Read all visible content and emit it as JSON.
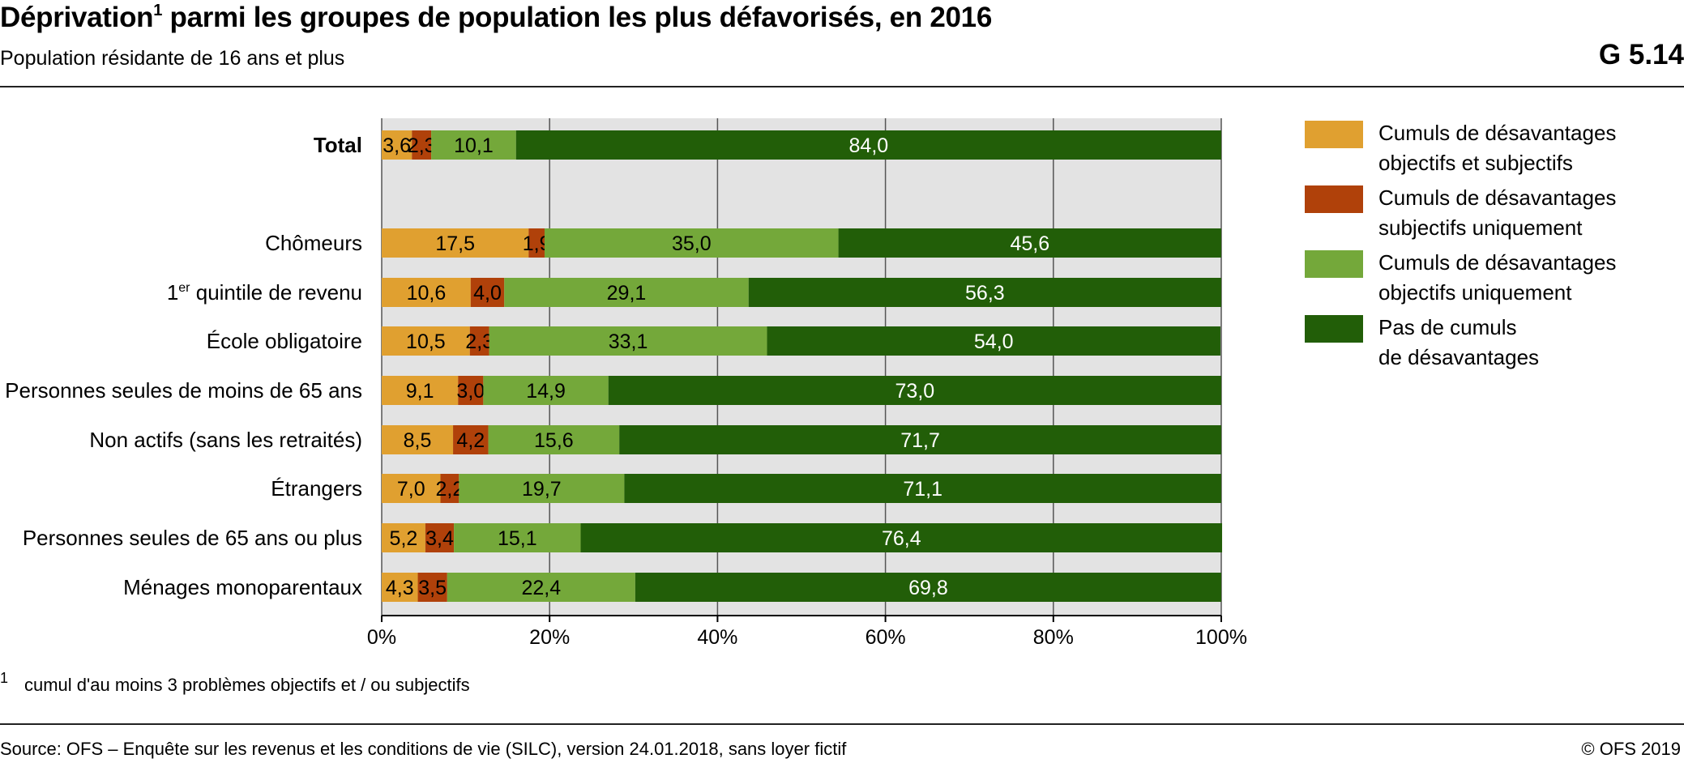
{
  "header": {
    "title": "Déprivation",
    "title_sup": "1",
    "title_rest": " parmi les groupes de population les plus défavorisés, en 2016",
    "subtitle": "Population résidante de 16 ans et plus",
    "code": "G 5.14"
  },
  "chart_data": {
    "type": "bar",
    "orientation": "horizontal",
    "stacked": true,
    "percent_stacked": true,
    "categories": [
      "Total",
      "Chômeurs",
      "1er quintile de revenu",
      "École obligatoire",
      "Personnes seules de moins de 65 ans",
      "Non actifs (sans les retraités)",
      "Étrangers",
      "Personnes seules de 65 ans ou plus",
      "Ménages monoparentaux"
    ],
    "category_gap_after_first": true,
    "series": [
      {
        "name": "Cumuls de désavantages objectifs et subjectifs",
        "color": "#E0A030",
        "label_color": "#000000",
        "values": [
          3.6,
          17.5,
          10.6,
          10.5,
          9.1,
          8.5,
          7.0,
          5.2,
          4.3
        ],
        "labels": [
          "3,6",
          "17,5",
          "10,6",
          "10,5",
          "9,1",
          "8,5",
          "7,0",
          "5,2",
          "4,3"
        ]
      },
      {
        "name": "Cumuls de désavantages subjectifs uniquement",
        "color": "#B0410A",
        "label_color": "#000000",
        "values": [
          2.3,
          1.9,
          4.0,
          2.3,
          3.0,
          4.2,
          2.2,
          3.4,
          3.5
        ],
        "labels": [
          "2,3",
          "1,9",
          "4,0",
          "2,3",
          "3,0",
          "4,2",
          "2,2",
          "3,4",
          "3,5"
        ]
      },
      {
        "name": "Cumuls de désavantages objectifs uniquement",
        "color": "#74A83A",
        "label_color": "#000000",
        "values": [
          10.1,
          35.0,
          29.1,
          33.1,
          14.9,
          15.6,
          19.7,
          15.1,
          22.4
        ],
        "labels": [
          "10,1",
          "35,0",
          "29,1",
          "33,1",
          "14,9",
          "15,6",
          "19,7",
          "15,1",
          "22,4"
        ]
      },
      {
        "name": "Pas de cumuls de désavantages",
        "color": "#225E08",
        "label_color": "#FFFFFF",
        "values": [
          84.0,
          45.6,
          56.3,
          54.0,
          73.0,
          71.7,
          71.1,
          76.4,
          69.8
        ],
        "labels": [
          "84,0",
          "45,6",
          "56,3",
          "54,0",
          "73,0",
          "71,7",
          "71,1",
          "76,4",
          "69,8"
        ]
      }
    ],
    "xlim": [
      0,
      100
    ],
    "x_ticks": [
      "0%",
      "20%",
      "40%",
      "60%",
      "80%",
      "100%"
    ],
    "grid": true,
    "plot_background": "#E3E3E3",
    "legend_position": "right"
  },
  "legend": [
    {
      "text": "Cumuls de désavantages\nobjectifs et subjectifs",
      "color": "#E0A030"
    },
    {
      "text": "Cumuls de désavantages\nsubjectifs uniquement",
      "color": "#B0410A"
    },
    {
      "text": "Cumuls de désavantages\nobjectifs uniquement",
      "color": "#74A83A"
    },
    {
      "text": "Pas de cumuls\nde désavantages",
      "color": "#225E08"
    }
  ],
  "footnote": {
    "mark": "1",
    "text": "cumul d'au moins 3 problèmes objectifs et / ou subjectifs"
  },
  "footer": {
    "source": "Source: OFS – Enquête sur les revenus et les conditions de vie (SILC), version 24.01.2018, sans loyer fictif",
    "copyright": "© OFS 2019"
  }
}
